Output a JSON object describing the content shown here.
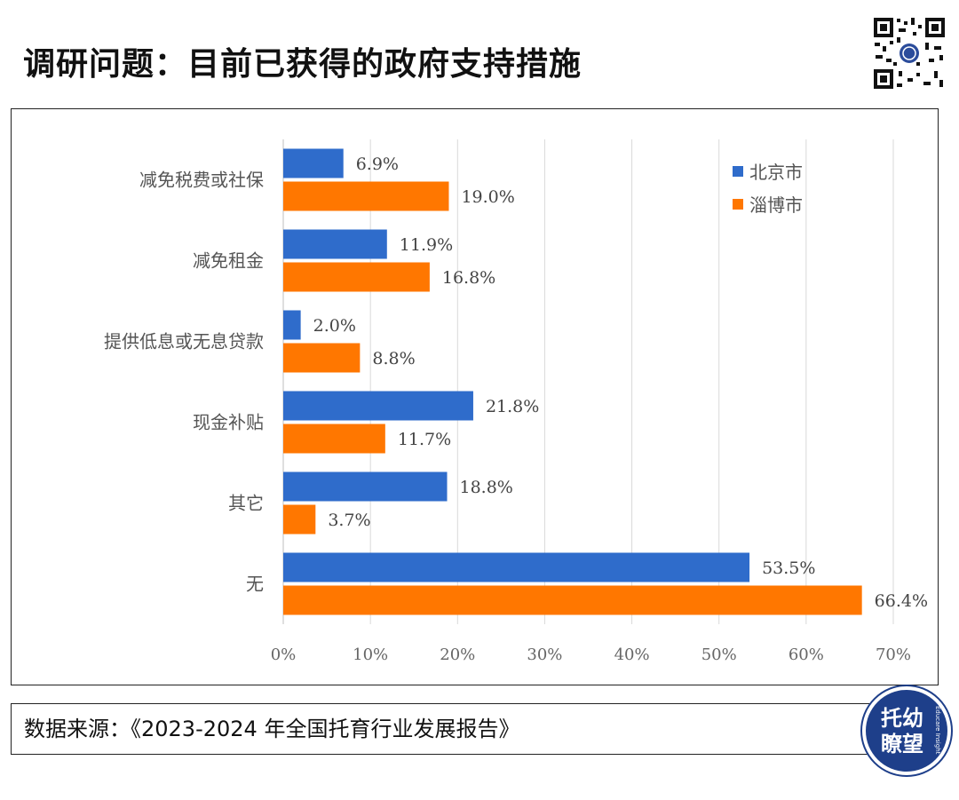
{
  "header": {
    "title": "调研问题：目前已获得的政府支持措施"
  },
  "colors": {
    "beijing": "#2F6CCB",
    "zibo": "#FF7700",
    "grid": "#D9D9D9",
    "logo_bg": "#1E3F8A"
  },
  "chart_data": {
    "type": "bar",
    "orientation": "horizontal",
    "title": "调研问题：目前已获得的政府支持措施",
    "categories": [
      "减免税费或社保",
      "减免租金",
      "提供低息或无息贷款",
      "现金补贴",
      "其它",
      "无"
    ],
    "series": [
      {
        "name": "北京市",
        "values": [
          6.9,
          11.9,
          2.0,
          21.8,
          18.8,
          53.5
        ],
        "labels": [
          "6.9%",
          "11.9%",
          "2.0%",
          "21.8%",
          "18.8%",
          "53.5%"
        ]
      },
      {
        "name": "淄博市",
        "values": [
          19.0,
          16.8,
          8.8,
          11.7,
          3.7,
          66.4
        ],
        "labels": [
          "19.0%",
          "16.8%",
          "8.8%",
          "11.7%",
          "3.7%",
          "66.4%"
        ]
      }
    ],
    "xlim": [
      0,
      70
    ],
    "xticks": [
      "0%",
      "10%",
      "20%",
      "30%",
      "40%",
      "50%",
      "60%",
      "70%"
    ],
    "xlabel": "",
    "ylabel": "",
    "grid": true,
    "legend": "top-right"
  },
  "source": {
    "text": "数据来源：《2023-2024 年全国托育行业发展报告》"
  },
  "logo": {
    "line1": "托幼",
    "line2": "瞭望",
    "side_text": "Educare Insight"
  }
}
